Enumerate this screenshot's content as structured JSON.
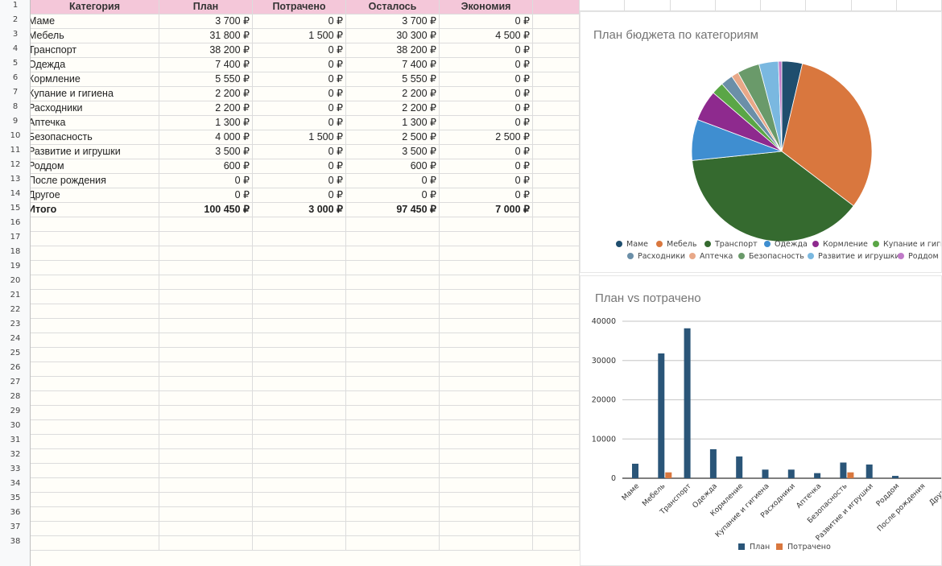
{
  "sheet": {
    "header": [
      "Категория",
      "План",
      "Потрачено",
      "Осталось",
      "Экономия"
    ],
    "rows": [
      [
        "Маме",
        "3 700 ₽",
        "0 ₽",
        "3 700 ₽",
        "0 ₽"
      ],
      [
        "Мебель",
        "31 800 ₽",
        "1 500 ₽",
        "30 300 ₽",
        "4 500 ₽"
      ],
      [
        "Транспорт",
        "38 200 ₽",
        "0 ₽",
        "38 200 ₽",
        "0 ₽"
      ],
      [
        "Одежда",
        "7 400 ₽",
        "0 ₽",
        "7 400 ₽",
        "0 ₽"
      ],
      [
        "Кормление",
        "5 550 ₽",
        "0 ₽",
        "5 550 ₽",
        "0 ₽"
      ],
      [
        "Купание и гигиена",
        "2 200 ₽",
        "0 ₽",
        "2 200 ₽",
        "0 ₽"
      ],
      [
        "Расходники",
        "2 200 ₽",
        "0 ₽",
        "2 200 ₽",
        "0 ₽"
      ],
      [
        "Аптечка",
        "1 300 ₽",
        "0 ₽",
        "1 300 ₽",
        "0 ₽"
      ],
      [
        "Безопасность",
        "4 000 ₽",
        "1 500 ₽",
        "2 500 ₽",
        "2 500 ₽"
      ],
      [
        "Развитие и игрушки",
        "3 500 ₽",
        "0 ₽",
        "3 500 ₽",
        "0 ₽"
      ],
      [
        "Роддом",
        "600 ₽",
        "0 ₽",
        "600 ₽",
        "0 ₽"
      ],
      [
        "После рождения",
        "0 ₽",
        "0 ₽",
        "0 ₽",
        "0 ₽"
      ],
      [
        "Другое",
        "0 ₽",
        "0 ₽",
        "0 ₽",
        "0 ₽"
      ]
    ],
    "total": [
      "Итого",
      "100 450 ₽",
      "3 000 ₽",
      "97 450 ₽",
      "7 000 ₽"
    ],
    "row_numbers": [
      "1",
      "2",
      "3",
      "4",
      "5",
      "6",
      "7",
      "8",
      "9",
      "10",
      "11",
      "12",
      "13",
      "14",
      "15",
      "16",
      "17",
      "18",
      "19",
      "20",
      "21",
      "22",
      "23",
      "24",
      "25",
      "26",
      "27",
      "28",
      "29",
      "30",
      "31",
      "32",
      "33",
      "34",
      "35",
      "36",
      "37",
      "38"
    ],
    "header_color": "#f4c7d9"
  },
  "chart_data": [
    {
      "type": "pie",
      "title": "План бюджета по категориям",
      "labels": [
        "Маме",
        "Мебель",
        "Транспорт",
        "Одежда",
        "Кормление",
        "Купание и гигиена",
        "Расходники",
        "Аптечка",
        "Безопасность",
        "Развитие и игрушки",
        "Роддом"
      ],
      "values": [
        3700,
        31800,
        38200,
        7400,
        5550,
        2200,
        2200,
        1300,
        4000,
        3500,
        600
      ],
      "colors": [
        "#1f4e6e",
        "#d9773e",
        "#356a2f",
        "#3f8ed0",
        "#8e2a8e",
        "#5aa646",
        "#6b8fa8",
        "#e8a888",
        "#6a9a6a",
        "#7ab8e0",
        "#c07ac8"
      ],
      "legend_position": "bottom"
    },
    {
      "type": "bar",
      "title": "План vs потрачено",
      "categories": [
        "Маме",
        "Мебель",
        "Транспорт",
        "Одежда",
        "Кормление",
        "Купание и гигиена",
        "Расходники",
        "Аптечка",
        "Безопасность",
        "Развитие и игрушки",
        "Роддом",
        "После рождения",
        "Другое"
      ],
      "series": [
        {
          "name": "План",
          "values": [
            3700,
            31800,
            38200,
            7400,
            5550,
            2200,
            2200,
            1300,
            4000,
            3500,
            600,
            0,
            0
          ],
          "color": "#2a5578"
        },
        {
          "name": "Потрачено",
          "values": [
            0,
            1500,
            0,
            0,
            0,
            0,
            0,
            0,
            1500,
            0,
            0,
            0,
            0
          ],
          "color": "#d9773e"
        }
      ],
      "ylim": [
        0,
        40000
      ],
      "yticks": [
        "0",
        "10000",
        "20000",
        "30000",
        "40000"
      ],
      "grid": true,
      "legend_position": "bottom"
    }
  ]
}
